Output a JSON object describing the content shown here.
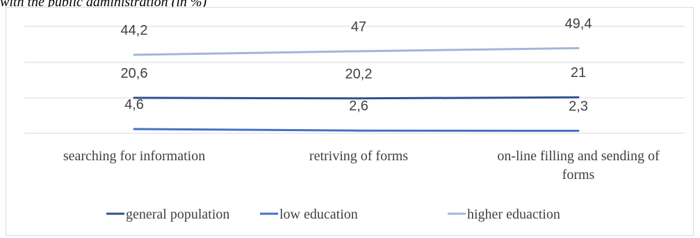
{
  "caption": "with the public administration (in %)",
  "chart_data": {
    "type": "line",
    "categories": [
      "searching for information",
      "retriving of forms",
      "on-line filling and sending of forms"
    ],
    "series": [
      {
        "name": "general population",
        "values": [
          20.6,
          20.2,
          21
        ],
        "labels": [
          "20,6",
          "20,2",
          "21"
        ],
        "color": "#2f528f"
      },
      {
        "name": "low education",
        "values": [
          4.6,
          2.6,
          2.3
        ],
        "labels": [
          "4,6",
          "2,6",
          "2,3"
        ],
        "color": "#4472c4"
      },
      {
        "name": "higher eduaction",
        "values": [
          44.2,
          47,
          49.4
        ],
        "labels": [
          "44,2",
          "47",
          "49,4"
        ],
        "color": "#a5b4da"
      }
    ],
    "legend_position": "bottom",
    "grid": true
  }
}
